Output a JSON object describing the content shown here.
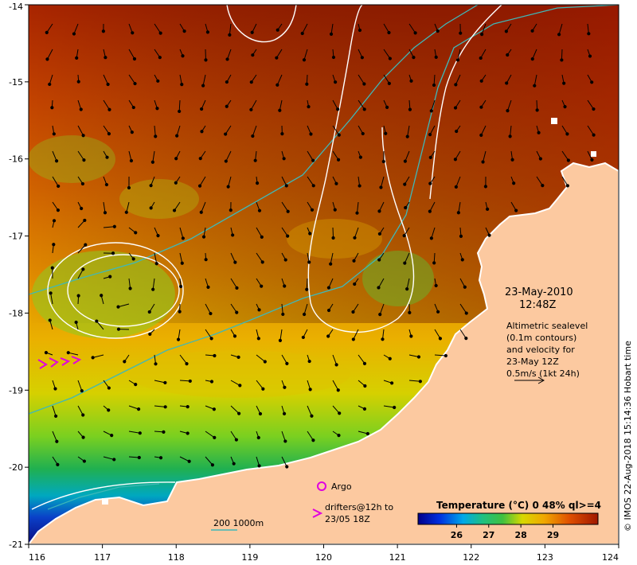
{
  "map": {
    "x_ticks": [
      "116",
      "117",
      "118",
      "119",
      "120",
      "121",
      "122",
      "123",
      "124"
    ],
    "y_ticks": [
      "-14",
      "-15",
      "-16",
      "-17",
      "-18",
      "-19",
      "-20",
      "-21"
    ],
    "x_range": [
      116,
      124
    ],
    "y_range": [
      -21,
      -14
    ]
  },
  "annotation": {
    "date": "23-May-2010",
    "time": "12:48Z",
    "desc_lines": [
      "Altimetric sealevel",
      "(0.1m contours)",
      "and velocity for",
      "23-May 12Z",
      "0.5m/s (1kt 24h)"
    ]
  },
  "legend": {
    "argo": "Argo",
    "drifters_line1": "drifters@12h to",
    "drifters_line2": "23/05 18Z",
    "bathy": "200  1000m"
  },
  "colorbar": {
    "title": "Temperature (°C) 0 48% ql>=4",
    "ticks": [
      "26",
      "27",
      "28",
      "29"
    ],
    "range": [
      24.8,
      30.4
    ]
  },
  "credit": "© IMOS 22-Aug-2018 15:14:36 Hobart time",
  "colors": {
    "land": "#fcc9a0",
    "warm": "#b83000",
    "cool": "#0a1a9a",
    "contour": "#ffffff",
    "bathymetry": "#3fb8b8",
    "argo": "#e000e0"
  }
}
